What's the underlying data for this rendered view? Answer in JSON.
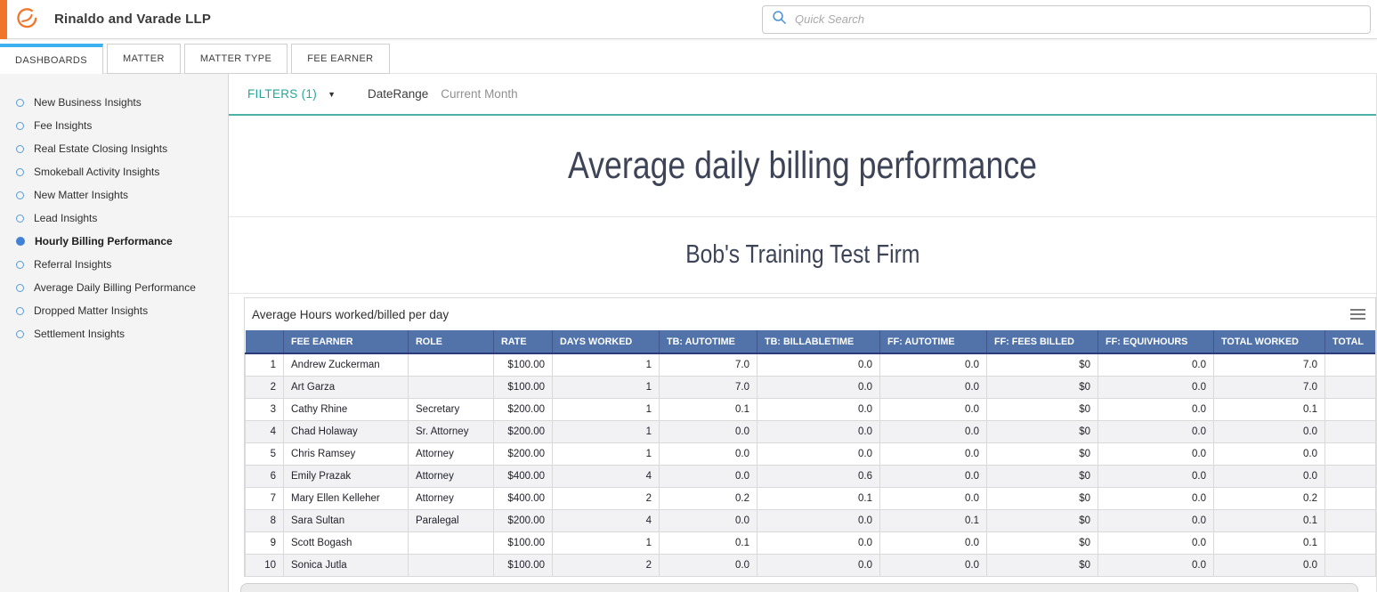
{
  "topbar": {
    "firm_name": "Rinaldo and Varade LLP",
    "search_placeholder": "Quick Search"
  },
  "tabs": [
    {
      "label": "DASHBOARDS",
      "active": true
    },
    {
      "label": "MATTER",
      "active": false
    },
    {
      "label": "MATTER TYPE",
      "active": false
    },
    {
      "label": "FEE EARNER",
      "active": false
    }
  ],
  "sidebar": {
    "items": [
      {
        "label": "New Business Insights",
        "selected": false
      },
      {
        "label": "Fee Insights",
        "selected": false
      },
      {
        "label": "Real Estate Closing Insights",
        "selected": false
      },
      {
        "label": "Smokeball Activity Insights",
        "selected": false
      },
      {
        "label": "New Matter Insights",
        "selected": false
      },
      {
        "label": "Lead Insights",
        "selected": false
      },
      {
        "label": "Hourly Billing Performance",
        "selected": true
      },
      {
        "label": "Referral Insights",
        "selected": false
      },
      {
        "label": "Average Daily Billing Performance",
        "selected": false
      },
      {
        "label": "Dropped Matter Insights",
        "selected": false
      },
      {
        "label": "Settlement Insights",
        "selected": false
      }
    ]
  },
  "filters": {
    "label": "FILTERS (1)",
    "caret": "▼",
    "field_label": "DateRange",
    "field_value": "Current Month"
  },
  "dashboard": {
    "title": "Average daily billing performance",
    "subtitle": "Bob's Training Test Firm"
  },
  "widget": {
    "title": "Average Hours worked/billed per day",
    "columns": [
      "",
      "FEE EARNER",
      "ROLE",
      "RATE",
      "DAYS WORKED",
      "TB: AUTOTIME",
      "TB: BILLABLETIME",
      "FF: AUTOTIME",
      "FF: FEES BILLED",
      "FF: EQUIVHOURS",
      "TOTAL WORKED",
      "TOTAL"
    ],
    "rows": [
      [
        "1",
        "Andrew Zuckerman",
        "",
        "$100.00",
        "1",
        "7.0",
        "0.0",
        "0.0",
        "$0",
        "0.0",
        "7.0",
        ""
      ],
      [
        "2",
        "Art Garza",
        "",
        "$100.00",
        "1",
        "7.0",
        "0.0",
        "0.0",
        "$0",
        "0.0",
        "7.0",
        ""
      ],
      [
        "3",
        "Cathy Rhine",
        "Secretary",
        "$200.00",
        "1",
        "0.1",
        "0.0",
        "0.0",
        "$0",
        "0.0",
        "0.1",
        ""
      ],
      [
        "4",
        "Chad Holaway",
        "Sr. Attorney",
        "$200.00",
        "1",
        "0.0",
        "0.0",
        "0.0",
        "$0",
        "0.0",
        "0.0",
        ""
      ],
      [
        "5",
        "Chris Ramsey",
        "Attorney",
        "$200.00",
        "1",
        "0.0",
        "0.0",
        "0.0",
        "$0",
        "0.0",
        "0.0",
        ""
      ],
      [
        "6",
        "Emily Prazak",
        "Attorney",
        "$400.00",
        "4",
        "0.0",
        "0.6",
        "0.0",
        "$0",
        "0.0",
        "0.0",
        ""
      ],
      [
        "7",
        "Mary Ellen Kelleher",
        "Attorney",
        "$400.00",
        "2",
        "0.2",
        "0.1",
        "0.0",
        "$0",
        "0.0",
        "0.2",
        ""
      ],
      [
        "8",
        "Sara Sultan",
        "Paralegal",
        "$200.00",
        "4",
        "0.0",
        "0.0",
        "0.1",
        "$0",
        "0.0",
        "0.1",
        ""
      ],
      [
        "9",
        "Scott Bogash",
        "",
        "$100.00",
        "1",
        "0.1",
        "0.0",
        "0.0",
        "$0",
        "0.0",
        "0.1",
        ""
      ],
      [
        "10",
        "Sonica Jutla",
        "",
        "$100.00",
        "2",
        "0.0",
        "0.0",
        "0.0",
        "$0",
        "0.0",
        "0.0",
        ""
      ]
    ]
  },
  "colors": {
    "accent_orange": "#f0762b",
    "tab_indicator_blue": "#3db0f0",
    "filter_teal": "#26a69a",
    "table_header_blue": "#5173a9"
  }
}
